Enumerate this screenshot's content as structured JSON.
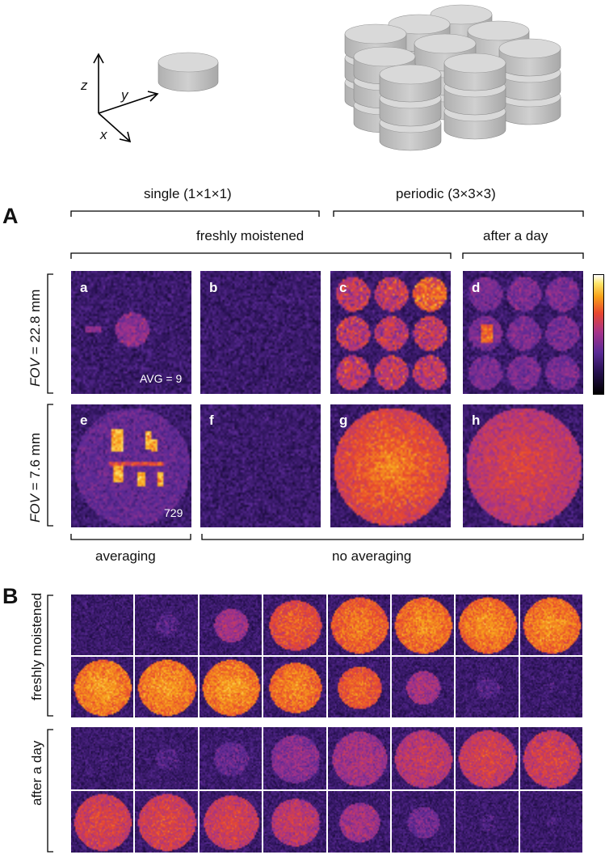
{
  "axes_labels": {
    "z": "z",
    "y": "y",
    "x": "x"
  },
  "section_a": {
    "letter": "A",
    "group_single": "single (1×1×1)",
    "group_periodic": "periodic (3×3×3)",
    "group_freshly": "freshly moistened",
    "group_after_day": "after a day",
    "row1_label_var": "FOV",
    "row1_label_val": " = 22.8 mm",
    "row2_label_var": "FOV",
    "row2_label_val": " = 7.6 mm",
    "bottom_averaging": "averaging",
    "bottom_no_averaging": "no averaging",
    "panels": [
      {
        "id": "a",
        "note": "AVG = 9"
      },
      {
        "id": "b",
        "note": ""
      },
      {
        "id": "c",
        "note": ""
      },
      {
        "id": "d",
        "note": ""
      },
      {
        "id": "e",
        "note": "729"
      },
      {
        "id": "f",
        "note": ""
      },
      {
        "id": "g",
        "note": ""
      },
      {
        "id": "h",
        "note": ""
      }
    ]
  },
  "section_b": {
    "letter": "B",
    "row_group_1": "freshly moistened",
    "row_group_2": "after a day",
    "fresh_levels": [
      0.05,
      0.12,
      0.45,
      0.75,
      0.85,
      0.9,
      0.92,
      0.92,
      0.95,
      0.95,
      0.95,
      0.9,
      0.8,
      0.45,
      0.12,
      0.05
    ],
    "fresh_radius": [
      0.1,
      0.2,
      0.3,
      0.45,
      0.5,
      0.5,
      0.5,
      0.5,
      0.5,
      0.5,
      0.5,
      0.45,
      0.38,
      0.3,
      0.2,
      0.1
    ],
    "day_levels": [
      0.05,
      0.1,
      0.2,
      0.35,
      0.45,
      0.55,
      0.62,
      0.62,
      0.65,
      0.65,
      0.62,
      0.55,
      0.45,
      0.25,
      0.08,
      0.05
    ],
    "day_radius": [
      0.1,
      0.2,
      0.3,
      0.42,
      0.48,
      0.5,
      0.5,
      0.5,
      0.5,
      0.5,
      0.48,
      0.42,
      0.35,
      0.28,
      0.15,
      0.1
    ]
  },
  "colors": {
    "colormap": [
      "#000000",
      "#25104e",
      "#5a2a96",
      "#a6338a",
      "#e8472f",
      "#f8a21a",
      "#fde56a",
      "#ffffff"
    ],
    "disk_face": "#d9d9d9",
    "disk_side": "#b8b8b8"
  }
}
